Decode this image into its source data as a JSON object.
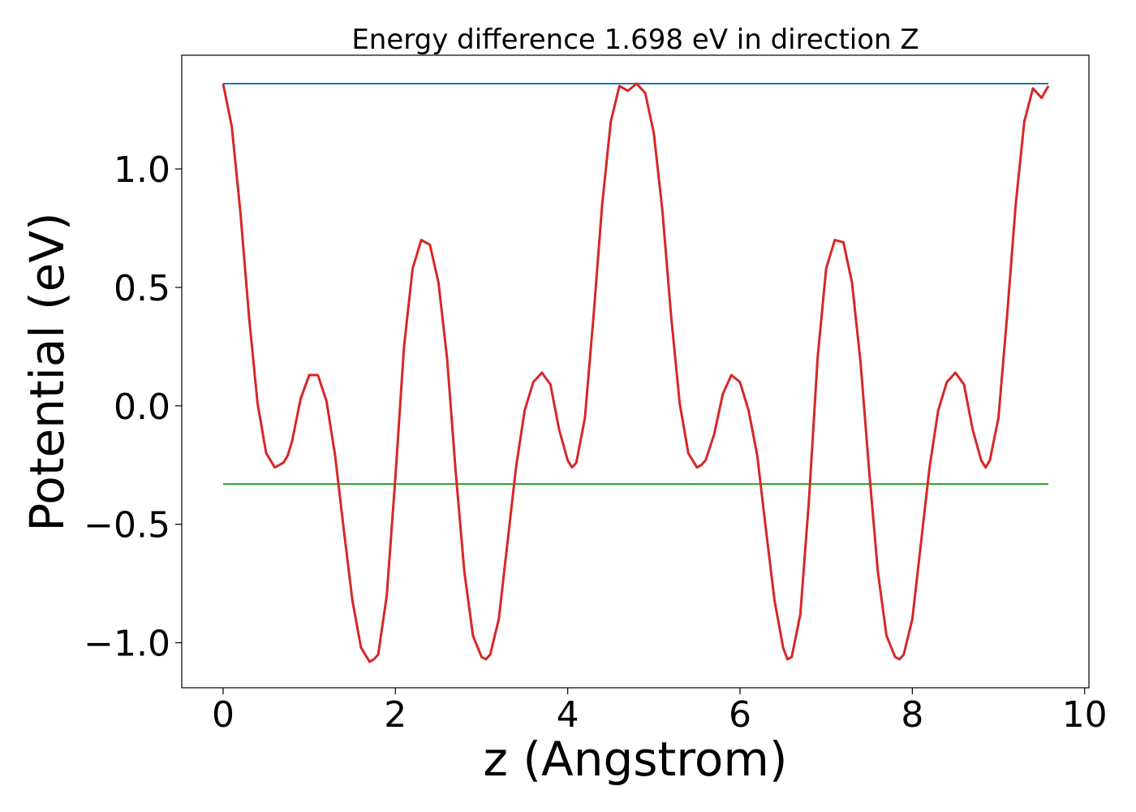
{
  "chart_data": {
    "type": "line",
    "title": "Energy difference 1.698 eV in direction Z",
    "xlabel": "z (Angstrom)",
    "ylabel": "Potential (eV)",
    "xlim": [
      -0.48,
      10.05
    ],
    "ylim": [
      -1.19,
      1.48
    ],
    "x_ticks": [
      0,
      2,
      4,
      6,
      8,
      10
    ],
    "x_tick_labels": [
      "0",
      "2",
      "4",
      "6",
      "8",
      "10"
    ],
    "y_ticks": [
      -1.0,
      -0.5,
      0.0,
      0.5,
      1.0
    ],
    "y_tick_labels": [
      "−1.0",
      "−0.5",
      "0.0",
      "0.5",
      "1.0"
    ],
    "grid": false,
    "colors": {
      "potential": "#d62728",
      "max": "#1f77b4",
      "min": "#2ca02c"
    },
    "series": [
      {
        "x": [
          0.0,
          0.1,
          0.2,
          0.3,
          0.4,
          0.5,
          0.6,
          0.7,
          0.75,
          0.8,
          0.9,
          1.0,
          1.1,
          1.2,
          1.3,
          1.4,
          1.5,
          1.6,
          1.7,
          1.75,
          1.8,
          1.9,
          2.0,
          2.1,
          2.2,
          2.3,
          2.4,
          2.5,
          2.6,
          2.7,
          2.8,
          2.9,
          3.0,
          3.05,
          3.1,
          3.2,
          3.3,
          3.4,
          3.5,
          3.6,
          3.7,
          3.8,
          3.9,
          4.0,
          4.05,
          4.1,
          4.2,
          4.3,
          4.4,
          4.5,
          4.6,
          4.7,
          4.8,
          4.9,
          5.0,
          5.1,
          5.2,
          5.3,
          5.4,
          5.5,
          5.55,
          5.6,
          5.7,
          5.8,
          5.9,
          6.0,
          6.1,
          6.2,
          6.3,
          6.4,
          6.5,
          6.55,
          6.6,
          6.7,
          6.8,
          6.9,
          7.0,
          7.1,
          7.2,
          7.3,
          7.4,
          7.5,
          7.6,
          7.7,
          7.8,
          7.85,
          7.9,
          8.0,
          8.1,
          8.2,
          8.3,
          8.4,
          8.5,
          8.6,
          8.7,
          8.8,
          8.85,
          8.9,
          9.0,
          9.1,
          9.2,
          9.3,
          9.4,
          9.5,
          9.58
        ],
        "y": [
          1.36,
          1.18,
          0.82,
          0.38,
          0.01,
          -0.2,
          -0.26,
          -0.24,
          -0.21,
          -0.15,
          0.03,
          0.13,
          0.13,
          0.02,
          -0.21,
          -0.52,
          -0.82,
          -1.02,
          -1.08,
          -1.07,
          -1.05,
          -0.8,
          -0.3,
          0.25,
          0.58,
          0.7,
          0.68,
          0.52,
          0.2,
          -0.28,
          -0.7,
          -0.97,
          -1.06,
          -1.07,
          -1.05,
          -0.9,
          -0.58,
          -0.26,
          -0.02,
          0.1,
          0.14,
          0.09,
          -0.1,
          -0.23,
          -0.26,
          -0.24,
          -0.05,
          0.38,
          0.85,
          1.2,
          1.35,
          1.33,
          1.36,
          1.32,
          1.15,
          0.82,
          0.38,
          0.01,
          -0.2,
          -0.26,
          -0.25,
          -0.23,
          -0.12,
          0.05,
          0.13,
          0.1,
          -0.02,
          -0.21,
          -0.52,
          -0.82,
          -1.02,
          -1.07,
          -1.06,
          -0.88,
          -0.4,
          0.2,
          0.58,
          0.7,
          0.69,
          0.52,
          0.18,
          -0.28,
          -0.7,
          -0.97,
          -1.06,
          -1.07,
          -1.05,
          -0.9,
          -0.58,
          -0.26,
          -0.02,
          0.1,
          0.14,
          0.09,
          -0.1,
          -0.23,
          -0.26,
          -0.23,
          -0.05,
          0.38,
          0.85,
          1.2,
          1.34,
          1.3,
          1.35
        ],
        "color": "#d62728"
      },
      {
        "x": [
          0.0,
          9.58
        ],
        "y": [
          1.36,
          1.36
        ],
        "color": "#1f77b4"
      },
      {
        "x": [
          0.0,
          9.58
        ],
        "y": [
          -0.33,
          -0.33
        ],
        "color": "#2ca02c"
      }
    ]
  }
}
